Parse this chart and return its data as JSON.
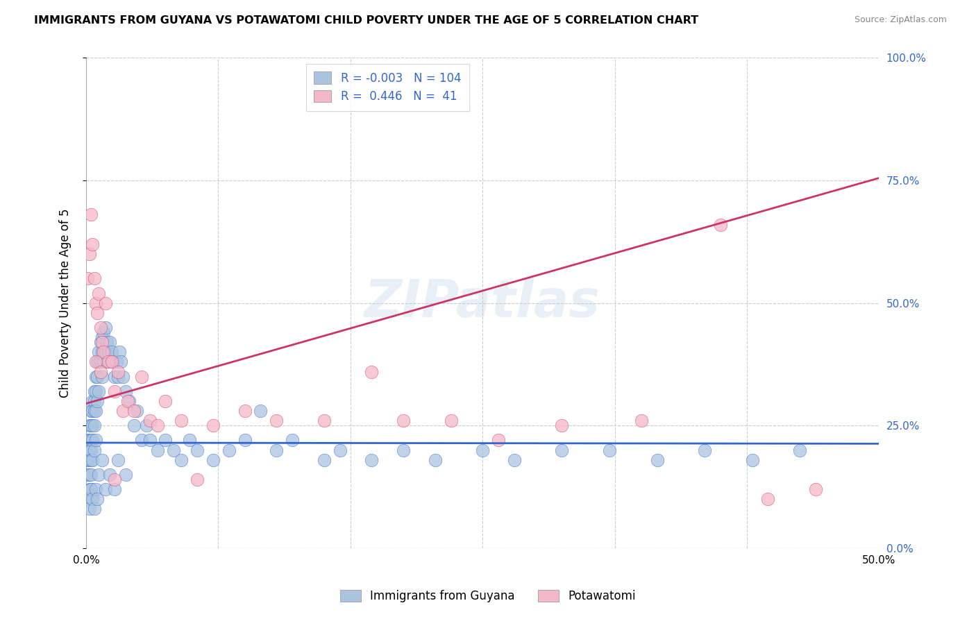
{
  "title": "IMMIGRANTS FROM GUYANA VS POTAWATOMI CHILD POVERTY UNDER THE AGE OF 5 CORRELATION CHART",
  "source": "Source: ZipAtlas.com",
  "ylabel": "Child Poverty Under the Age of 5",
  "ylabel_ticks_right": [
    "0.0%",
    "25.0%",
    "50.0%",
    "75.0%",
    "100.0%"
  ],
  "ylabel_vals": [
    0.0,
    0.25,
    0.5,
    0.75,
    1.0
  ],
  "xlim": [
    0.0,
    0.5
  ],
  "ylim": [
    0.0,
    1.0
  ],
  "xtick_labels": [
    "0.0%",
    "",
    "",
    "",
    "",
    "",
    "50.0%"
  ],
  "xtick_vals": [
    0.0,
    0.0833,
    0.1667,
    0.25,
    0.3333,
    0.4167,
    0.5
  ],
  "legend_label1": "Immigrants from Guyana",
  "legend_label2": "Potawatomi",
  "R1": "-0.003",
  "N1": "104",
  "R2": "0.446",
  "N2": "41",
  "color_blue": "#aac4e0",
  "color_pink": "#f5b8c8",
  "line_blue": "#3366cc",
  "line_pink": "#cc3366",
  "blue_line_y0": 0.215,
  "blue_line_y1": 0.213,
  "pink_line_y0": 0.295,
  "pink_line_y1": 0.755,
  "blue_scatter_x": [
    0.001,
    0.001,
    0.001,
    0.001,
    0.002,
    0.002,
    0.002,
    0.002,
    0.002,
    0.002,
    0.003,
    0.003,
    0.003,
    0.003,
    0.003,
    0.003,
    0.003,
    0.004,
    0.004,
    0.004,
    0.004,
    0.004,
    0.005,
    0.005,
    0.005,
    0.005,
    0.005,
    0.006,
    0.006,
    0.006,
    0.006,
    0.007,
    0.007,
    0.007,
    0.008,
    0.008,
    0.008,
    0.009,
    0.009,
    0.01,
    0.01,
    0.01,
    0.011,
    0.011,
    0.012,
    0.012,
    0.013,
    0.013,
    0.014,
    0.015,
    0.016,
    0.017,
    0.018,
    0.019,
    0.02,
    0.021,
    0.022,
    0.023,
    0.025,
    0.027,
    0.03,
    0.032,
    0.035,
    0.038,
    0.04,
    0.045,
    0.05,
    0.055,
    0.06,
    0.065,
    0.07,
    0.08,
    0.09,
    0.1,
    0.11,
    0.12,
    0.13,
    0.15,
    0.16,
    0.18,
    0.2,
    0.22,
    0.25,
    0.27,
    0.3,
    0.33,
    0.36,
    0.39,
    0.42,
    0.45,
    0.001,
    0.002,
    0.003,
    0.004,
    0.005,
    0.006,
    0.007,
    0.008,
    0.01,
    0.012,
    0.015,
    0.018,
    0.02,
    0.025
  ],
  "blue_scatter_y": [
    0.2,
    0.22,
    0.18,
    0.15,
    0.25,
    0.2,
    0.22,
    0.18,
    0.15,
    0.12,
    0.28,
    0.25,
    0.22,
    0.2,
    0.18,
    0.15,
    0.12,
    0.3,
    0.28,
    0.25,
    0.22,
    0.18,
    0.32,
    0.3,
    0.28,
    0.25,
    0.2,
    0.35,
    0.32,
    0.28,
    0.22,
    0.38,
    0.35,
    0.3,
    0.4,
    0.38,
    0.32,
    0.42,
    0.38,
    0.43,
    0.4,
    0.35,
    0.44,
    0.38,
    0.45,
    0.4,
    0.42,
    0.38,
    0.4,
    0.42,
    0.4,
    0.38,
    0.35,
    0.38,
    0.35,
    0.4,
    0.38,
    0.35,
    0.32,
    0.3,
    0.25,
    0.28,
    0.22,
    0.25,
    0.22,
    0.2,
    0.22,
    0.2,
    0.18,
    0.22,
    0.2,
    0.18,
    0.2,
    0.22,
    0.28,
    0.2,
    0.22,
    0.18,
    0.2,
    0.18,
    0.2,
    0.18,
    0.2,
    0.18,
    0.2,
    0.2,
    0.18,
    0.2,
    0.18,
    0.2,
    0.1,
    0.08,
    0.12,
    0.1,
    0.08,
    0.12,
    0.1,
    0.15,
    0.18,
    0.12,
    0.15,
    0.12,
    0.18,
    0.15
  ],
  "pink_scatter_x": [
    0.001,
    0.002,
    0.003,
    0.004,
    0.005,
    0.006,
    0.007,
    0.008,
    0.009,
    0.01,
    0.011,
    0.012,
    0.014,
    0.016,
    0.018,
    0.02,
    0.023,
    0.026,
    0.03,
    0.035,
    0.04,
    0.045,
    0.05,
    0.06,
    0.07,
    0.08,
    0.1,
    0.12,
    0.15,
    0.18,
    0.2,
    0.23,
    0.26,
    0.3,
    0.35,
    0.4,
    0.43,
    0.46,
    0.006,
    0.009,
    0.018
  ],
  "pink_scatter_y": [
    0.55,
    0.6,
    0.68,
    0.62,
    0.55,
    0.5,
    0.48,
    0.52,
    0.45,
    0.42,
    0.4,
    0.5,
    0.38,
    0.38,
    0.32,
    0.36,
    0.28,
    0.3,
    0.28,
    0.35,
    0.26,
    0.25,
    0.3,
    0.26,
    0.14,
    0.25,
    0.28,
    0.26,
    0.26,
    0.36,
    0.26,
    0.26,
    0.22,
    0.25,
    0.26,
    0.66,
    0.1,
    0.12,
    0.38,
    0.36,
    0.14
  ]
}
